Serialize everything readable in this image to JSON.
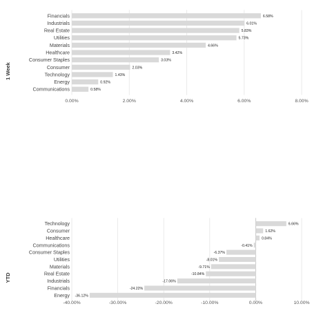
{
  "colors": {
    "bar": "#d9d9d9",
    "grid": "#e4e4e4",
    "zero_line": "#bdbdbd",
    "text": "#444444"
  },
  "chart_data": [
    {
      "type": "bar",
      "orientation": "horizontal",
      "title": "1 Week",
      "title_position": "left-rotated",
      "grid": true,
      "xlim": [
        0,
        8
      ],
      "ticks": [
        0,
        2,
        4,
        6,
        8
      ],
      "tick_labels": [
        "0.00%",
        "2.00%",
        "4.00%",
        "6.00%",
        "8.00%"
      ],
      "categories": [
        "Financials",
        "Industrials",
        "Real Estate",
        "Utilities",
        "Materials",
        "Healthcare",
        "Consumer Staples",
        "Consumer",
        "Technology",
        "Energy",
        "Communications"
      ],
      "values": [
        6.58,
        6.01,
        5.83,
        5.73,
        4.66,
        3.42,
        3.03,
        2.03,
        1.43,
        0.92,
        0.58
      ],
      "value_labels": [
        "6.58%",
        "6.01%",
        "5.83%",
        "5.73%",
        "4.66%",
        "3.42%",
        "3.03%",
        "2.03%",
        "1.43%",
        "0.92%",
        "0.58%"
      ]
    },
    {
      "type": "bar",
      "orientation": "horizontal",
      "title": "YTD",
      "title_position": "left-rotated",
      "grid": true,
      "xlim": [
        -40,
        10
      ],
      "ticks": [
        -40,
        -30,
        -20,
        -10,
        0,
        10
      ],
      "tick_labels": [
        "-40.00%",
        "-30.00%",
        "-20.00%",
        "-10.00%",
        "0.00%",
        "10.00%"
      ],
      "categories": [
        "Technology",
        "Consumer",
        "Healthcare",
        "Communications",
        "Consumer Staples",
        "Utilities",
        "Materials",
        "Real Estate",
        "Industrials",
        "Financials",
        "Energy"
      ],
      "values": [
        6.66,
        1.62,
        0.84,
        -0.41,
        -6.37,
        -8.01,
        -9.71,
        -10.84,
        -17.06,
        -24.22,
        -36.12
      ],
      "value_labels": [
        "6.66%",
        "1.62%",
        "0.84%",
        "-0.41%",
        "-6.37%",
        "-8.01%",
        "-9.71%",
        "-10.84%",
        "-17.06%",
        "-24.22%",
        "-36.12%"
      ]
    }
  ]
}
